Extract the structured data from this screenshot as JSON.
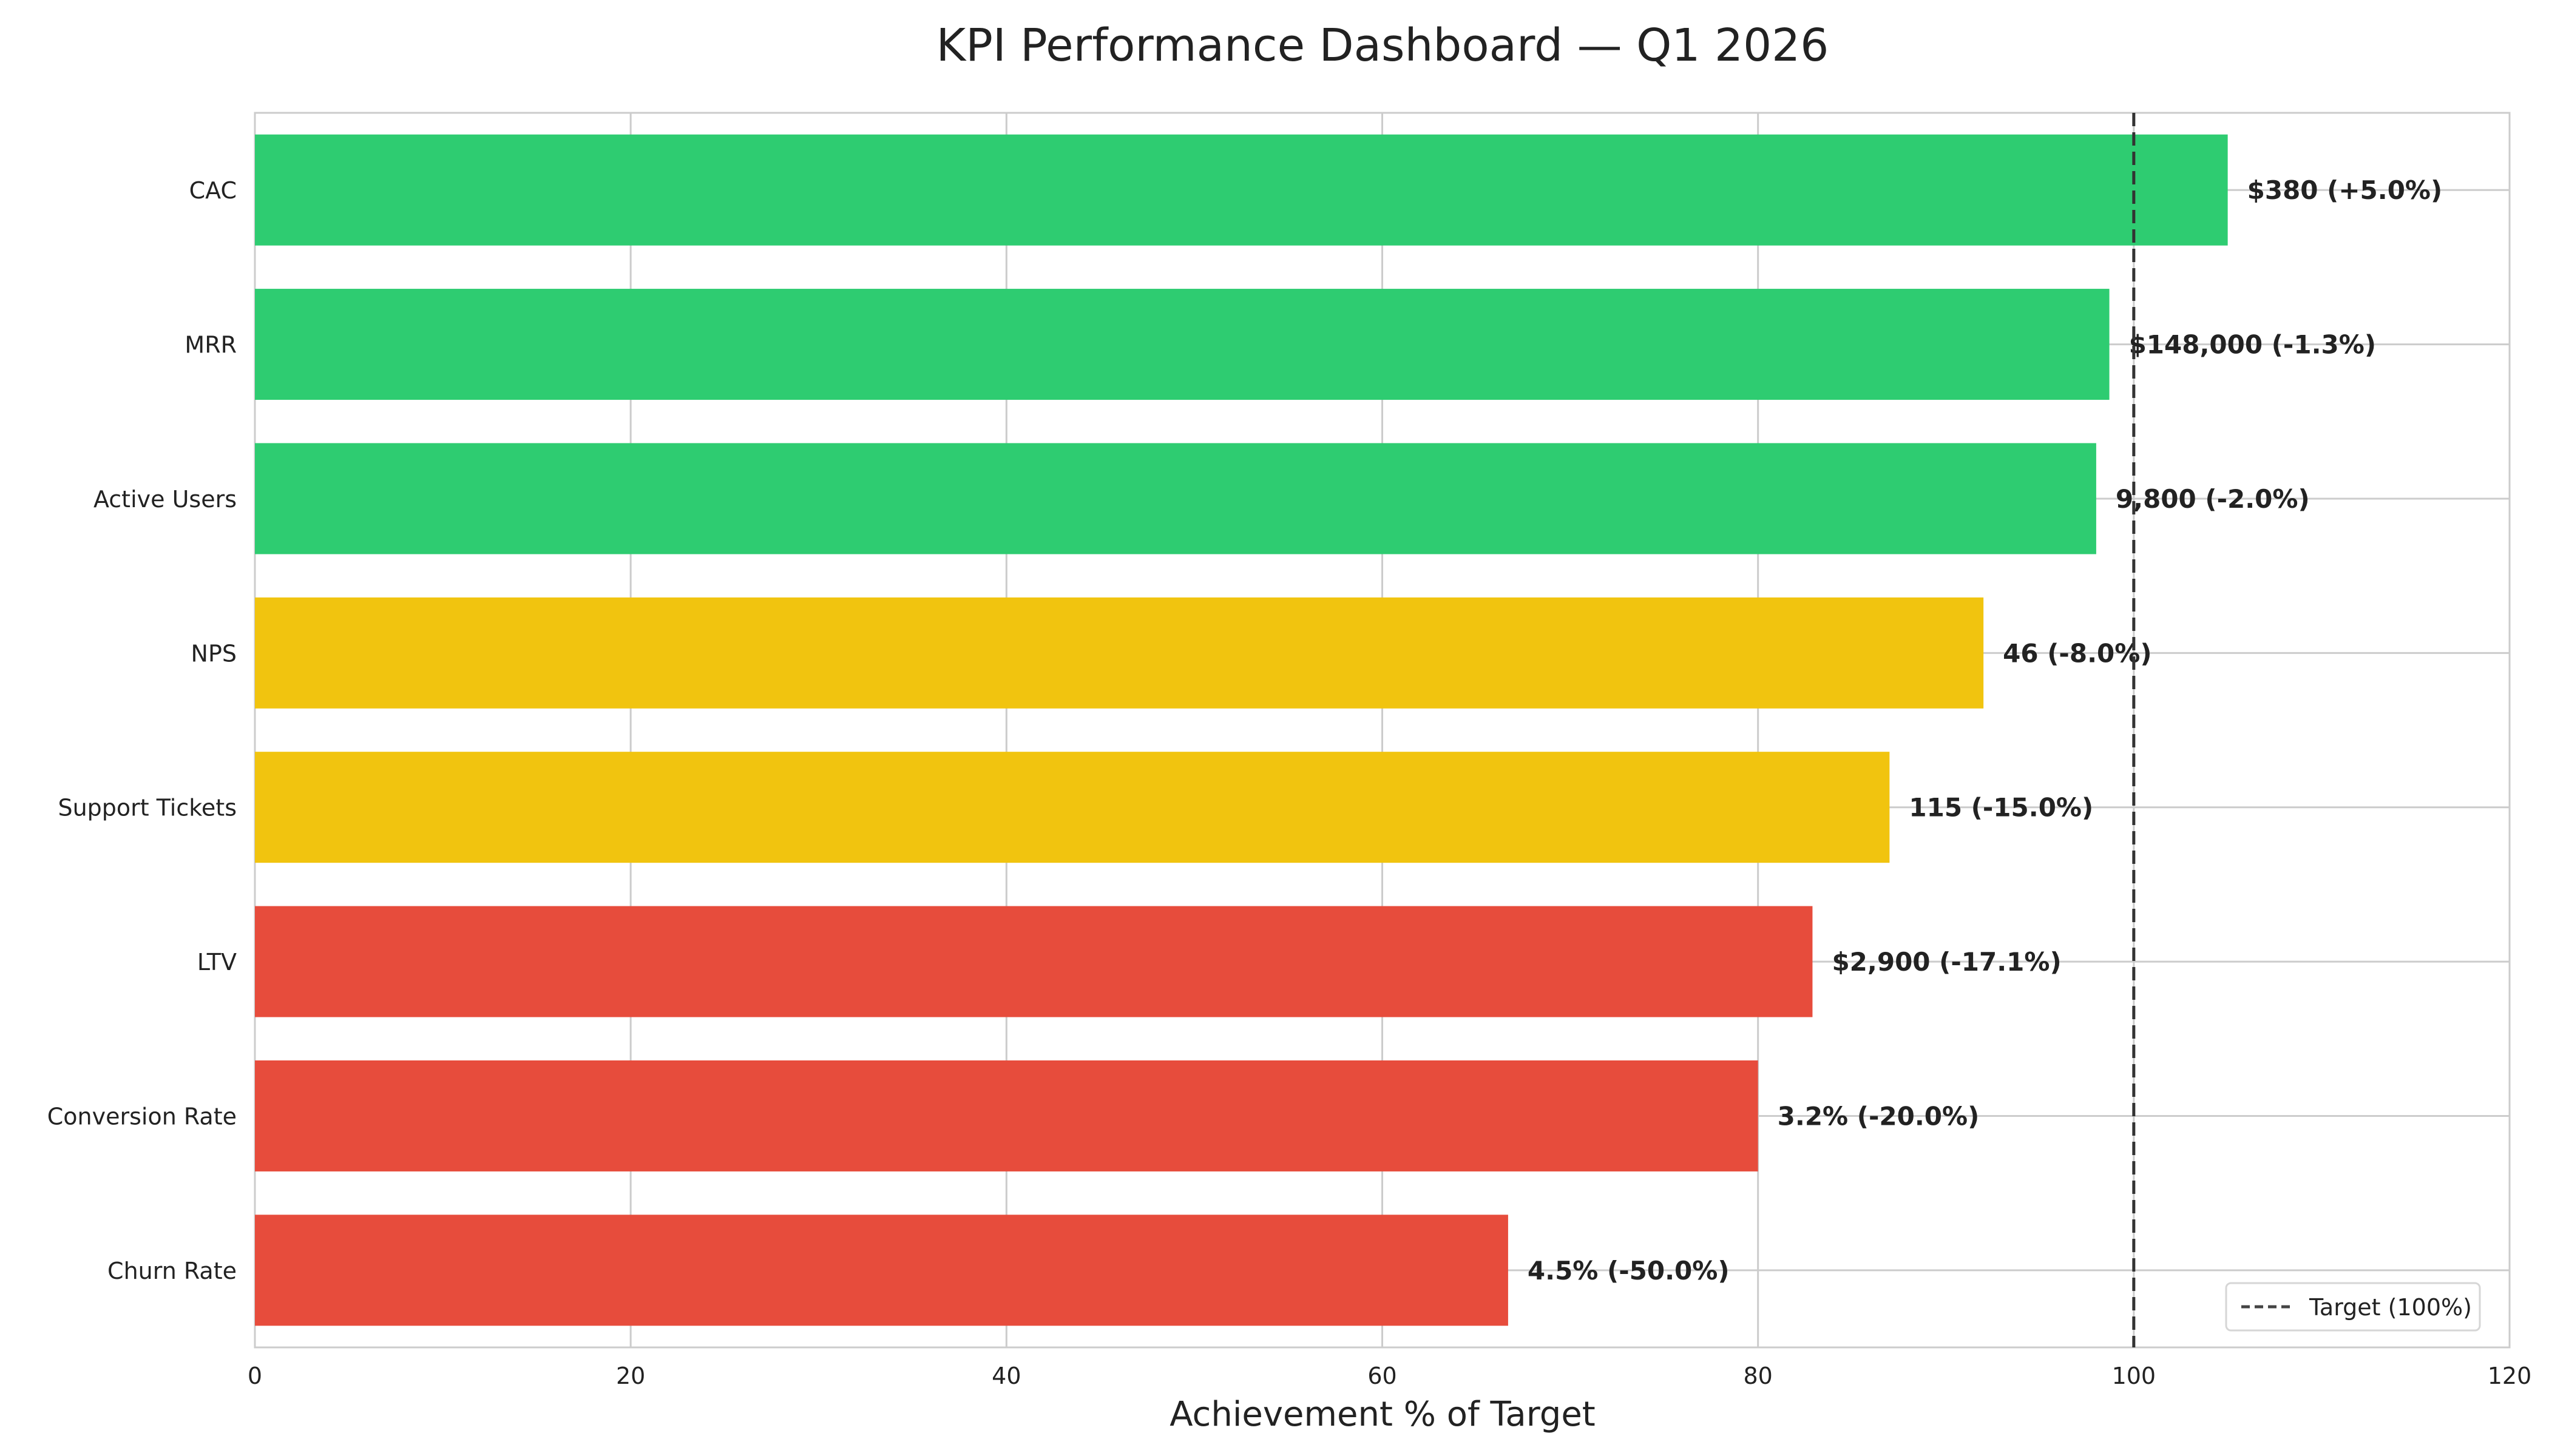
{
  "chart_data": {
    "type": "bar",
    "orientation": "horizontal",
    "title": "KPI Performance Dashboard — Q1 2026",
    "xlabel": "Achievement % of Target",
    "ylabel": "",
    "xlim": [
      0,
      120
    ],
    "xticks": [
      0,
      20,
      40,
      60,
      80,
      100,
      120
    ],
    "grid": true,
    "categories": [
      "CAC",
      "MRR",
      "Active Users",
      "NPS",
      "Support Tickets",
      "LTV",
      "Conversion Rate",
      "Churn Rate"
    ],
    "values": [
      105.0,
      98.7,
      98.0,
      92.0,
      87.0,
      82.9,
      80.0,
      66.7
    ],
    "data_labels": [
      "$380 (+5.0%)",
      "$148,000 (-1.3%)",
      "9,800 (-2.0%)",
      "46 (-8.0%)",
      "115 (-15.0%)",
      "$2,900 (-17.1%)",
      "3.2% (-20.0%)",
      "4.5% (-50.0%)"
    ],
    "bar_colors": [
      "#2ecc71",
      "#2ecc71",
      "#2ecc71",
      "#f1c40f",
      "#f1c40f",
      "#e74c3c",
      "#e74c3c",
      "#e74c3c"
    ],
    "reference_line": {
      "x": 100,
      "style": "dashed",
      "color": "#333333",
      "label": "Target (100%)"
    },
    "legend": {
      "position": "lower-right",
      "entries": [
        "Target (100%)"
      ]
    }
  }
}
